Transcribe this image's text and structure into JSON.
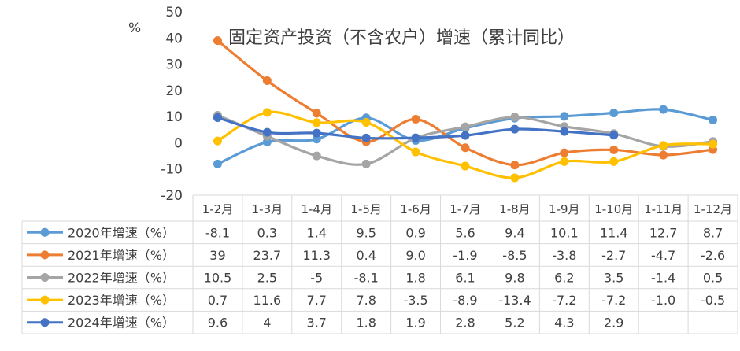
{
  "chart_data": {
    "type": "line",
    "title": "固定资产投资（不含农户）增速（累计同比）",
    "ylabel": "%",
    "ylim": [
      -20,
      50
    ],
    "yticks": [
      50,
      40,
      30,
      20,
      10,
      0,
      -10,
      -20
    ],
    "grid": false,
    "legend": "data-table-left",
    "categories": [
      "1-2月",
      "1-3月",
      "1-4月",
      "1-5月",
      "1-6月",
      "1-7月",
      "1-8月",
      "1-9月",
      "1-10月",
      "1-11月",
      "1-12月"
    ],
    "series": [
      {
        "name": "2020年增速（%）",
        "color": "#5B9BD5",
        "values": [
          -8.1,
          0.3,
          1.4,
          9.5,
          0.9,
          5.6,
          9.4,
          10.1,
          11.4,
          12.7,
          8.7
        ],
        "labels": [
          "-8.1",
          "0.3",
          "1.4",
          "9.5",
          "0.9",
          "5.6",
          "9.4",
          "10.1",
          "11.4",
          "12.7",
          "8.7"
        ]
      },
      {
        "name": "2021年增速（%）",
        "color": "#ED7D31",
        "values": [
          39,
          23.7,
          11.3,
          0.4,
          9.0,
          -1.9,
          -8.5,
          -3.8,
          -2.7,
          -4.7,
          -2.6
        ],
        "labels": [
          "39",
          "23.7",
          "11.3",
          "0.4",
          "9.0",
          "-1.9",
          "-8.5",
          "-3.8",
          "-2.7",
          "-4.7",
          "-2.6"
        ]
      },
      {
        "name": "2022年增速（%）",
        "color": "#A5A5A5",
        "values": [
          10.5,
          2.5,
          -5,
          -8.1,
          1.8,
          6.1,
          9.8,
          6.2,
          3.5,
          -1.4,
          0.5
        ],
        "labels": [
          "10.5",
          "2.5",
          "-5",
          "-8.1",
          "1.8",
          "6.1",
          "9.8",
          "6.2",
          "3.5",
          "-1.4",
          "0.5"
        ]
      },
      {
        "name": "2023年增速（%）",
        "color": "#FFC000",
        "values": [
          0.7,
          11.6,
          7.7,
          7.8,
          -3.5,
          -8.9,
          -13.4,
          -7.2,
          -7.2,
          -1.0,
          -0.5
        ],
        "labels": [
          "0.7",
          "11.6",
          "7.7",
          "7.8",
          "-3.5",
          "-8.9",
          "-13.4",
          "-7.2",
          "-7.2",
          "-1.0",
          "-0.5"
        ]
      },
      {
        "name": "2024年增速（%）",
        "color": "#4472C4",
        "values": [
          9.6,
          4,
          3.7,
          1.8,
          1.9,
          2.8,
          5.2,
          4.3,
          2.9,
          null,
          null
        ],
        "labels": [
          "9.6",
          "4",
          "3.7",
          "1.8",
          "1.9",
          "2.8",
          "5.2",
          "4.3",
          "2.9",
          "",
          ""
        ]
      }
    ]
  }
}
